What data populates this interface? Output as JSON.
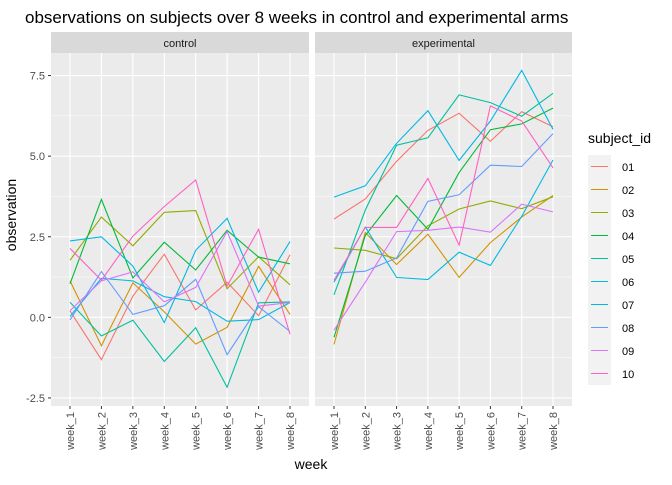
{
  "chart_data": {
    "type": "line",
    "title": "observations on subjects over 8 weeks in control and experimental arms",
    "xlabel": "week",
    "ylabel": "observation",
    "ylim": [
      -2.75,
      8.2
    ],
    "y_ticks": [
      -2.5,
      0.0,
      2.5,
      5.0,
      7.5
    ],
    "y_tick_labels": [
      "-2.5",
      "0.0",
      "2.5",
      "5.0",
      "7.5"
    ],
    "x": [
      "week_1",
      "week_2",
      "week_3",
      "week_4",
      "week_5",
      "week_6",
      "week_7",
      "week_8"
    ],
    "grid": true,
    "legend_title": "subject_id",
    "legend_position": "right",
    "facets": [
      {
        "name": "control",
        "series": [
          {
            "name": "01",
            "color": "#F8766D",
            "values": [
              0.2,
              -1.31,
              0.66,
              1.96,
              0.23,
              1.09,
              0.05,
              1.94
            ]
          },
          {
            "name": "02",
            "color": "#D39200",
            "values": [
              1.13,
              -0.88,
              1.07,
              0.17,
              -0.83,
              -0.31,
              1.58,
              0.09
            ]
          },
          {
            "name": "03",
            "color": "#93AA00",
            "values": [
              1.77,
              3.11,
              2.22,
              3.26,
              3.31,
              0.89,
              1.88,
              1.01
            ]
          },
          {
            "name": "04",
            "color": "#00BA38",
            "values": [
              1.04,
              3.66,
              1.22,
              2.33,
              1.47,
              2.7,
              1.87,
              1.66
            ]
          },
          {
            "name": "05",
            "color": "#00C19F",
            "values": [
              0.47,
              -0.58,
              -0.09,
              -1.37,
              -0.32,
              -2.17,
              0.45,
              0.48
            ]
          },
          {
            "name": "06",
            "color": "#00B9E3",
            "values": [
              2.37,
              2.5,
              1.59,
              -0.16,
              2.08,
              3.07,
              0.78,
              2.35
            ]
          },
          {
            "name": "07",
            "color": "#00B9E3",
            "values": [
              0.03,
              1.21,
              1.13,
              0.64,
              0.49,
              -0.12,
              -0.07,
              0.46
            ]
          },
          {
            "name": "08",
            "color": "#619CFF",
            "values": [
              -0.08,
              1.42,
              0.09,
              0.36,
              1.18,
              -1.16,
              0.33,
              -0.44
            ]
          },
          {
            "name": "09",
            "color": "#DB72FB",
            "values": [
              0.21,
              1.13,
              1.41,
              0.48,
              0.93,
              2.66,
              0.35,
              0.46
            ]
          },
          {
            "name": "10",
            "color": "#FF61C3",
            "values": [
              2.14,
              1.15,
              2.52,
              3.44,
              4.26,
              0.97,
              2.73,
              -0.53
            ]
          }
        ]
      },
      {
        "name": "experimental",
        "series": [
          {
            "name": "01",
            "color": "#F8766D",
            "values": [
              3.05,
              3.67,
              4.84,
              5.8,
              6.33,
              5.46,
              6.38,
              5.91
            ]
          },
          {
            "name": "02",
            "color": "#D39200",
            "values": [
              -0.84,
              2.63,
              1.64,
              2.58,
              1.24,
              2.32,
              3.11,
              3.78
            ]
          },
          {
            "name": "03",
            "color": "#93AA00",
            "values": [
              2.15,
              2.08,
              1.82,
              2.84,
              3.36,
              3.61,
              3.37,
              3.74
            ]
          },
          {
            "name": "04",
            "color": "#00BA38",
            "values": [
              -0.62,
              2.54,
              3.78,
              2.73,
              4.49,
              5.82,
              6.0,
              6.49
            ]
          },
          {
            "name": "05",
            "color": "#00C19F",
            "values": [
              0.7,
              3.33,
              5.34,
              5.57,
              6.9,
              6.66,
              6.24,
              6.95
            ]
          },
          {
            "name": "06",
            "color": "#00B9E3",
            "values": [
              3.73,
              4.08,
              5.4,
              6.41,
              4.87,
              6.09,
              7.66,
              5.83
            ]
          },
          {
            "name": "07",
            "color": "#00B9E3",
            "values": [
              1.09,
              2.8,
              1.24,
              1.17,
              2.02,
              1.61,
              3.13,
              4.88
            ]
          },
          {
            "name": "08",
            "color": "#619CFF",
            "values": [
              1.37,
              1.43,
              1.84,
              3.6,
              3.8,
              4.72,
              4.68,
              5.7
            ]
          },
          {
            "name": "09",
            "color": "#DB72FB",
            "values": [
              -0.4,
              1.09,
              2.66,
              2.7,
              2.8,
              2.64,
              3.51,
              3.27
            ]
          },
          {
            "name": "10",
            "color": "#FF61C3",
            "values": [
              1.15,
              2.79,
              2.79,
              4.31,
              2.24,
              6.56,
              6.09,
              4.64
            ]
          }
        ]
      }
    ]
  }
}
